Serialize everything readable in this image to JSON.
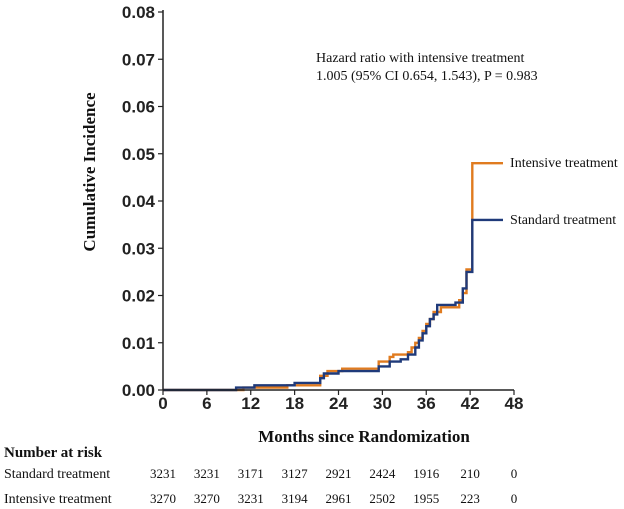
{
  "chart_data": {
    "type": "line",
    "title": "",
    "xlabel": "Months since Randomization",
    "ylabel": "Cumulative Incidence",
    "xlim": [
      0,
      48
    ],
    "ylim": [
      0,
      0.08
    ],
    "x_ticks": [
      0,
      6,
      12,
      18,
      24,
      30,
      36,
      42,
      48
    ],
    "y_ticks": [
      "0.00",
      "0.01",
      "0.02",
      "0.03",
      "0.04",
      "0.05",
      "0.06",
      "0.07",
      "0.08"
    ],
    "annotation_lines": [
      "Hazard ratio with intensive treatment",
      "1.005 (95% CI 0.654, 1.543), P = 0.983"
    ],
    "series": [
      {
        "name": "Intensive treatment",
        "color": "#E07B1F",
        "points": [
          [
            0,
            0
          ],
          [
            11,
            0
          ],
          [
            11,
            0.0005
          ],
          [
            17,
            0.0005
          ],
          [
            17,
            0.001
          ],
          [
            21.5,
            0.001
          ],
          [
            21.5,
            0.003
          ],
          [
            22.5,
            0.003
          ],
          [
            22.5,
            0.004
          ],
          [
            24.5,
            0.004
          ],
          [
            24.5,
            0.0045
          ],
          [
            29.5,
            0.0045
          ],
          [
            29.5,
            0.006
          ],
          [
            31,
            0.006
          ],
          [
            31,
            0.007
          ],
          [
            31.5,
            0.007
          ],
          [
            31.5,
            0.0075
          ],
          [
            33.5,
            0.0075
          ],
          [
            33.5,
            0.008
          ],
          [
            34,
            0.008
          ],
          [
            34,
            0.009
          ],
          [
            34.5,
            0.009
          ],
          [
            34.5,
            0.01
          ],
          [
            35,
            0.01
          ],
          [
            35,
            0.011
          ],
          [
            35.5,
            0.011
          ],
          [
            35.5,
            0.0125
          ],
          [
            36,
            0.0125
          ],
          [
            36,
            0.014
          ],
          [
            36.5,
            0.014
          ],
          [
            36.5,
            0.015
          ],
          [
            37,
            0.015
          ],
          [
            37,
            0.0165
          ],
          [
            38,
            0.0165
          ],
          [
            38,
            0.0175
          ],
          [
            40.5,
            0.0175
          ],
          [
            40.5,
            0.019
          ],
          [
            41,
            0.019
          ],
          [
            41,
            0.0205
          ],
          [
            41.5,
            0.0205
          ],
          [
            41.5,
            0.0255
          ],
          [
            42.3,
            0.0255
          ],
          [
            42.3,
            0.048
          ],
          [
            46.5,
            0.048
          ]
        ]
      },
      {
        "name": "Standard treatment",
        "color": "#1F3A7A",
        "points": [
          [
            0,
            0
          ],
          [
            10,
            0
          ],
          [
            10,
            0.0005
          ],
          [
            12.5,
            0.0005
          ],
          [
            12.5,
            0.001
          ],
          [
            18,
            0.001
          ],
          [
            18,
            0.0015
          ],
          [
            21.5,
            0.0015
          ],
          [
            21.5,
            0.0025
          ],
          [
            22,
            0.0025
          ],
          [
            22,
            0.0035
          ],
          [
            24,
            0.0035
          ],
          [
            24,
            0.004
          ],
          [
            29.5,
            0.004
          ],
          [
            29.5,
            0.005
          ],
          [
            31,
            0.005
          ],
          [
            31,
            0.006
          ],
          [
            32.5,
            0.006
          ],
          [
            32.5,
            0.0065
          ],
          [
            33.5,
            0.0065
          ],
          [
            33.5,
            0.0075
          ],
          [
            34.5,
            0.0075
          ],
          [
            34.5,
            0.009
          ],
          [
            35,
            0.009
          ],
          [
            35,
            0.0105
          ],
          [
            35.5,
            0.0105
          ],
          [
            35.5,
            0.012
          ],
          [
            36,
            0.012
          ],
          [
            36,
            0.0135
          ],
          [
            36.5,
            0.0135
          ],
          [
            36.5,
            0.015
          ],
          [
            37,
            0.015
          ],
          [
            37,
            0.016
          ],
          [
            37.5,
            0.016
          ],
          [
            37.5,
            0.018
          ],
          [
            40,
            0.018
          ],
          [
            40,
            0.0185
          ],
          [
            41,
            0.0185
          ],
          [
            41,
            0.0215
          ],
          [
            41.5,
            0.0215
          ],
          [
            41.5,
            0.025
          ],
          [
            42.3,
            0.025
          ],
          [
            42.3,
            0.036
          ],
          [
            46.5,
            0.036
          ]
        ]
      }
    ],
    "risk_table": {
      "title": "Number at risk",
      "time_points": [
        0,
        6,
        12,
        18,
        24,
        30,
        36,
        42,
        48
      ],
      "rows": [
        {
          "label": "Standard treatment",
          "values": [
            "3231",
            "3231",
            "3171",
            "3127",
            "2921",
            "2424",
            "1916",
            "210",
            "0"
          ]
        },
        {
          "label": "Intensive treatment",
          "values": [
            "3270",
            "3270",
            "3231",
            "3194",
            "2961",
            "2502",
            "1955",
            "223",
            "0"
          ]
        }
      ]
    }
  }
}
